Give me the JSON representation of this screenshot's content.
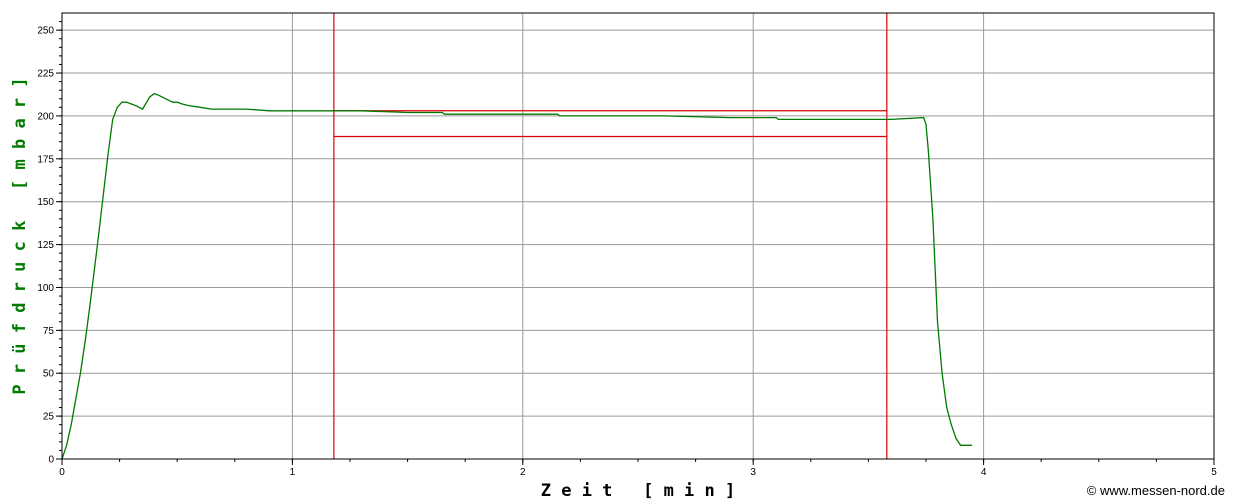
{
  "chart_data": {
    "type": "line",
    "xlabel": "Z e i t   [ m i n ]",
    "ylabel": "P r ü f d r u c k   [ m b a r ]",
    "xlim": [
      0,
      5
    ],
    "ylim": [
      0,
      260
    ],
    "x_ticks": [
      "0",
      "1",
      "2",
      "3",
      "4",
      "5"
    ],
    "y_ticks": [
      "0",
      "25",
      "50",
      "75",
      "100",
      "125",
      "150",
      "175",
      "200",
      "225",
      "250"
    ],
    "grid": true,
    "series": [
      {
        "color": "#007a00",
        "x": [
          0,
          0.02,
          0.04,
          0.06,
          0.08,
          0.1,
          0.12,
          0.14,
          0.16,
          0.18,
          0.2,
          0.22,
          0.24,
          0.26,
          0.28,
          0.3,
          0.32,
          0.35,
          0.38,
          0.4,
          0.42,
          0.45,
          0.48,
          0.5,
          0.52,
          0.55,
          0.6,
          0.65,
          0.7,
          0.8,
          0.9,
          1.0,
          1.1,
          1.2,
          1.3,
          1.5,
          1.65,
          1.66,
          2.0,
          2.15,
          2.16,
          2.4,
          2.6,
          2.61,
          2.9,
          3.1,
          3.11,
          3.4,
          3.6,
          3.74,
          3.75,
          3.76,
          3.77,
          3.78,
          3.79,
          3.8,
          3.82,
          3.84,
          3.86,
          3.88,
          3.9,
          3.92,
          3.94,
          3.95
        ],
        "y": [
          0,
          8,
          20,
          35,
          50,
          68,
          88,
          110,
          132,
          155,
          178,
          198,
          205,
          208,
          208,
          207,
          206,
          204,
          211,
          213,
          212,
          210,
          208,
          208,
          207,
          206,
          205,
          204,
          204,
          204,
          203,
          203,
          203,
          203,
          203,
          202,
          202,
          201,
          201,
          201,
          200,
          200,
          200,
          200,
          199,
          199,
          198,
          198,
          198,
          199,
          195,
          180,
          160,
          140,
          110,
          80,
          50,
          30,
          20,
          12,
          8,
          8,
          8,
          8
        ]
      }
    ],
    "markers": {
      "color": "#dd0000",
      "vertical_lines_x": [
        1.18,
        3.58
      ],
      "horizontal_lines": [
        {
          "y": 203,
          "x_from": 1.18,
          "x_to": 3.58
        },
        {
          "y": 188,
          "x_from": 1.18,
          "x_to": 3.58
        }
      ]
    },
    "credit": "© www.messen-nord.de"
  }
}
